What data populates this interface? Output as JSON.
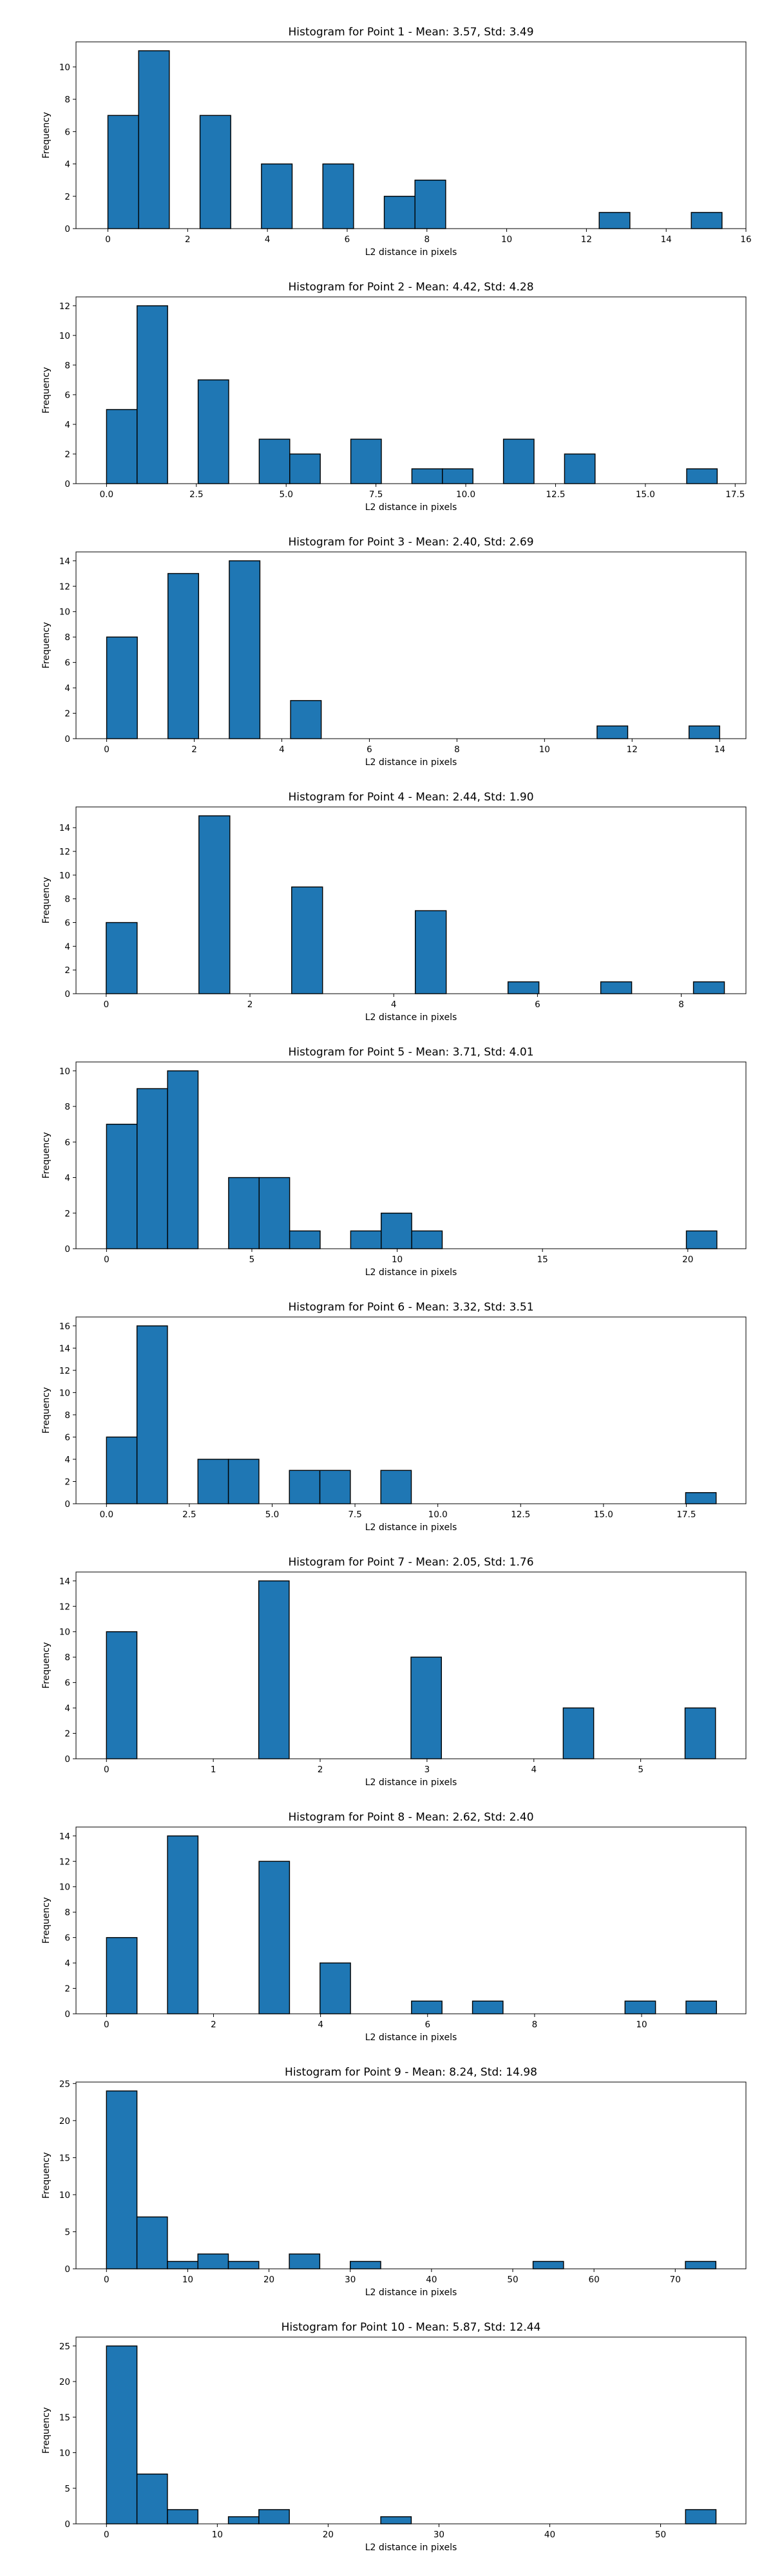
{
  "figure": {
    "bar_color": "#1f77b4",
    "edge_color": "#000000"
  },
  "chart_data": [
    {
      "type": "bar",
      "title": "Histogram for Point 1 - Mean: 3.57, Std: 3.49",
      "xlabel": "L2 distance in pixels",
      "ylabel": "Frequency",
      "xlim": [
        -0.8,
        16.0
      ],
      "ylim": [
        0,
        11.55
      ],
      "xticks": [
        0,
        2,
        4,
        6,
        8,
        10,
        12,
        14,
        16
      ],
      "xtick_labels": [
        "0",
        "2",
        "4",
        "6",
        "8",
        "10",
        "12",
        "14",
        "16"
      ],
      "yticks": [
        0,
        2,
        4,
        6,
        8,
        10
      ],
      "ytick_labels": [
        "0",
        "2",
        "4",
        "6",
        "8",
        "10"
      ],
      "bins": [
        [
          0,
          0.77
        ],
        [
          0.77,
          1.54
        ],
        [
          2.31,
          3.08
        ],
        [
          3.85,
          4.62
        ],
        [
          5.39,
          6.16
        ],
        [
          6.93,
          7.7
        ],
        [
          7.7,
          8.47
        ],
        [
          12.32,
          13.09
        ],
        [
          14.63,
          15.4
        ]
      ],
      "values": [
        7,
        11,
        7,
        4,
        4,
        2,
        3,
        1,
        1
      ]
    },
    {
      "type": "bar",
      "title": "Histogram for Point 2 - Mean: 4.42, Std: 4.28",
      "xlabel": "L2 distance in pixels",
      "ylabel": "Frequency",
      "xlim": [
        -0.85,
        17.8
      ],
      "ylim": [
        0,
        12.6
      ],
      "xticks": [
        0,
        2.5,
        5,
        7.5,
        10,
        12.5,
        15,
        17.5
      ],
      "xtick_labels": [
        "0.0",
        "2.5",
        "5.0",
        "7.5",
        "10.0",
        "12.5",
        "15.0",
        "17.5"
      ],
      "yticks": [
        0,
        2,
        4,
        6,
        8,
        10,
        12
      ],
      "ytick_labels": [
        "0",
        "2",
        "4",
        "6",
        "8",
        "10",
        "12"
      ],
      "bins": [
        [
          0,
          0.85
        ],
        [
          0.85,
          1.7
        ],
        [
          2.55,
          3.4
        ],
        [
          4.25,
          5.1
        ],
        [
          5.1,
          5.95
        ],
        [
          6.8,
          7.65
        ],
        [
          8.5,
          9.35
        ],
        [
          9.35,
          10.2
        ],
        [
          11.05,
          11.9
        ],
        [
          12.75,
          13.6
        ],
        [
          16.15,
          17.0
        ]
      ],
      "values": [
        5,
        12,
        7,
        3,
        2,
        3,
        1,
        1,
        3,
        2,
        1
      ]
    },
    {
      "type": "bar",
      "title": "Histogram for Point 3 - Mean: 2.40, Std: 2.69",
      "xlabel": "L2 distance in pixels",
      "ylabel": "Frequency",
      "xlim": [
        -0.7,
        14.6
      ],
      "ylim": [
        0,
        14.7
      ],
      "xticks": [
        0,
        2,
        4,
        6,
        8,
        10,
        12,
        14
      ],
      "xtick_labels": [
        "0",
        "2",
        "4",
        "6",
        "8",
        "10",
        "12",
        "14"
      ],
      "yticks": [
        0,
        2,
        4,
        6,
        8,
        10,
        12,
        14
      ],
      "ytick_labels": [
        "0",
        "2",
        "4",
        "6",
        "8",
        "10",
        "12",
        "14"
      ],
      "bins": [
        [
          0,
          0.7
        ],
        [
          1.4,
          2.1
        ],
        [
          2.8,
          3.5
        ],
        [
          4.2,
          4.9
        ],
        [
          11.2,
          11.9
        ],
        [
          13.3,
          14.0
        ]
      ],
      "values": [
        8,
        13,
        14,
        3,
        1,
        1
      ]
    },
    {
      "type": "bar",
      "title": "Histogram for Point 4 - Mean: 2.44, Std: 1.90",
      "xlabel": "L2 distance in pixels",
      "ylabel": "Frequency",
      "xlim": [
        -0.42,
        8.9
      ],
      "ylim": [
        0,
        15.75
      ],
      "xticks": [
        0,
        2,
        4,
        6,
        8
      ],
      "xtick_labels": [
        "0",
        "2",
        "4",
        "6",
        "8"
      ],
      "yticks": [
        0,
        2,
        4,
        6,
        8,
        10,
        12,
        14
      ],
      "ytick_labels": [
        "0",
        "2",
        "4",
        "6",
        "8",
        "10",
        "12",
        "14"
      ],
      "bins": [
        [
          0,
          0.43
        ],
        [
          1.29,
          1.72
        ],
        [
          2.58,
          3.01
        ],
        [
          4.3,
          4.73
        ],
        [
          5.59,
          6.02
        ],
        [
          6.88,
          7.31
        ],
        [
          8.17,
          8.6
        ]
      ],
      "values": [
        6,
        15,
        9,
        7,
        1,
        1,
        1
      ]
    },
    {
      "type": "bar",
      "title": "Histogram for Point 5 - Mean: 3.71, Std: 4.01",
      "xlabel": "L2 distance in pixels",
      "ylabel": "Frequency",
      "xlim": [
        -1.05,
        22.0
      ],
      "ylim": [
        0,
        10.5
      ],
      "xticks": [
        0,
        5,
        10,
        15,
        20
      ],
      "xtick_labels": [
        "0",
        "5",
        "10",
        "15",
        "20"
      ],
      "yticks": [
        0,
        2,
        4,
        6,
        8,
        10
      ],
      "ytick_labels": [
        "0",
        "2",
        "4",
        "6",
        "8",
        "10"
      ],
      "bins": [
        [
          0,
          1.05
        ],
        [
          1.05,
          2.1
        ],
        [
          2.1,
          3.15
        ],
        [
          4.2,
          5.25
        ],
        [
          5.25,
          6.3
        ],
        [
          6.3,
          7.35
        ],
        [
          8.4,
          9.45
        ],
        [
          9.45,
          10.5
        ],
        [
          10.5,
          11.55
        ],
        [
          19.95,
          21.0
        ]
      ],
      "values": [
        7,
        9,
        10,
        4,
        4,
        1,
        1,
        2,
        1,
        1
      ]
    },
    {
      "type": "bar",
      "title": "Histogram for Point 6 - Mean: 3.32, Std: 3.51",
      "xlabel": "L2 distance in pixels",
      "ylabel": "Frequency",
      "xlim": [
        -0.92,
        19.3
      ],
      "ylim": [
        0,
        16.8
      ],
      "xticks": [
        0,
        2.5,
        5,
        7.5,
        10,
        12.5,
        15,
        17.5
      ],
      "xtick_labels": [
        "0.0",
        "2.5",
        "5.0",
        "7.5",
        "10.0",
        "12.5",
        "15.0",
        "17.5"
      ],
      "yticks": [
        0,
        2,
        4,
        6,
        8,
        10,
        12,
        14,
        16
      ],
      "ytick_labels": [
        "0",
        "2",
        "4",
        "6",
        "8",
        "10",
        "12",
        "14",
        "16"
      ],
      "bins": [
        [
          0,
          0.92
        ],
        [
          0.92,
          1.84
        ],
        [
          2.76,
          3.68
        ],
        [
          3.68,
          4.6
        ],
        [
          5.52,
          6.44
        ],
        [
          6.44,
          7.36
        ],
        [
          8.28,
          9.2
        ],
        [
          17.48,
          18.4
        ]
      ],
      "values": [
        6,
        16,
        4,
        4,
        3,
        3,
        3,
        1
      ]
    },
    {
      "type": "bar",
      "title": "Histogram for Point 7 - Mean: 2.05, Std: 1.76",
      "xlabel": "L2 distance in pixels",
      "ylabel": "Frequency",
      "xlim": [
        -0.285,
        5.985
      ],
      "ylim": [
        0,
        14.7
      ],
      "xticks": [
        0,
        1,
        2,
        3,
        4,
        5
      ],
      "xtick_labels": [
        "0",
        "1",
        "2",
        "3",
        "4",
        "5"
      ],
      "yticks": [
        0,
        2,
        4,
        6,
        8,
        10,
        12,
        14
      ],
      "ytick_labels": [
        "0",
        "2",
        "4",
        "6",
        "8",
        "10",
        "12",
        "14"
      ],
      "bins": [
        [
          0,
          0.285
        ],
        [
          1.425,
          1.71
        ],
        [
          2.85,
          3.135
        ],
        [
          4.275,
          4.56
        ],
        [
          5.415,
          5.7
        ]
      ],
      "values": [
        10,
        14,
        8,
        4,
        4
      ]
    },
    {
      "type": "bar",
      "title": "Histogram for Point 8 - Mean: 2.62, Std: 2.40",
      "xlabel": "L2 distance in pixels",
      "ylabel": "Frequency",
      "xlim": [
        -0.57,
        11.95
      ],
      "ylim": [
        0,
        14.7
      ],
      "xticks": [
        0,
        2,
        4,
        6,
        8,
        10
      ],
      "xtick_labels": [
        "0",
        "2",
        "4",
        "6",
        "8",
        "10"
      ],
      "yticks": [
        0,
        2,
        4,
        6,
        8,
        10,
        12,
        14
      ],
      "ytick_labels": [
        "0",
        "2",
        "4",
        "6",
        "8",
        "10",
        "12",
        "14"
      ],
      "bins": [
        [
          0,
          0.57
        ],
        [
          1.14,
          1.71
        ],
        [
          2.85,
          3.42
        ],
        [
          3.99,
          4.56
        ],
        [
          5.7,
          6.27
        ],
        [
          6.84,
          7.41
        ],
        [
          9.69,
          10.26
        ],
        [
          10.83,
          11.4
        ]
      ],
      "values": [
        6,
        14,
        12,
        4,
        1,
        1,
        1,
        1
      ]
    },
    {
      "type": "bar",
      "title": "Histogram for Point 9 - Mean: 8.24, Std: 14.98",
      "xlabel": "L2 distance in pixels",
      "ylabel": "Frequency",
      "xlim": [
        -3.75,
        78.7
      ],
      "ylim": [
        0,
        25.2
      ],
      "xticks": [
        0,
        10,
        20,
        30,
        40,
        50,
        60,
        70
      ],
      "xtick_labels": [
        "0",
        "10",
        "20",
        "30",
        "40",
        "50",
        "60",
        "70"
      ],
      "yticks": [
        0,
        5,
        10,
        15,
        20,
        25
      ],
      "ytick_labels": [
        "0",
        "5",
        "10",
        "15",
        "20",
        "25"
      ],
      "bins": [
        [
          0,
          3.75
        ],
        [
          3.75,
          7.5
        ],
        [
          7.5,
          11.25
        ],
        [
          11.25,
          15.0
        ],
        [
          15.0,
          18.75
        ],
        [
          22.5,
          26.25
        ],
        [
          30.0,
          33.75
        ],
        [
          52.5,
          56.25
        ],
        [
          71.25,
          75.0
        ]
      ],
      "values": [
        24,
        7,
        1,
        2,
        1,
        2,
        1,
        1,
        1
      ]
    },
    {
      "type": "bar",
      "title": "Histogram for Point 10 - Mean: 5.87, Std: 12.44",
      "xlabel": "L2 distance in pixels",
      "ylabel": "Frequency",
      "xlim": [
        -2.75,
        57.7
      ],
      "ylim": [
        0,
        26.25
      ],
      "xticks": [
        0,
        10,
        20,
        30,
        40,
        50
      ],
      "xtick_labels": [
        "0",
        "10",
        "20",
        "30",
        "40",
        "50"
      ],
      "yticks": [
        0,
        5,
        10,
        15,
        20,
        25
      ],
      "ytick_labels": [
        "0",
        "5",
        "10",
        "15",
        "20",
        "25"
      ],
      "bins": [
        [
          0,
          2.75
        ],
        [
          2.75,
          5.5
        ],
        [
          5.5,
          8.25
        ],
        [
          11.0,
          13.75
        ],
        [
          13.75,
          16.5
        ],
        [
          24.75,
          27.5
        ],
        [
          52.25,
          55.0
        ]
      ],
      "values": [
        25,
        7,
        2,
        1,
        2,
        1,
        2
      ]
    }
  ]
}
